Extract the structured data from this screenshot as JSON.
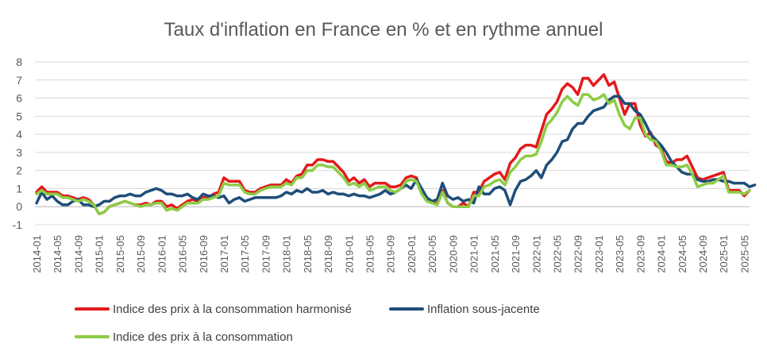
{
  "chart_data": {
    "type": "line",
    "title": "Taux d'inflation en France en % et en rythme annuel",
    "xlabel": "",
    "ylabel": "",
    "ylim": [
      -1,
      8
    ],
    "yticks": [
      "-1",
      "0",
      "1",
      "2",
      "3",
      "4",
      "5",
      "6",
      "7",
      "8"
    ],
    "grid": "horizontal",
    "legend_position": "bottom",
    "x_tick_labels": [
      "2014-01",
      "2014-05",
      "2014-09",
      "2015-01",
      "2015-05",
      "2015-09",
      "2016-01",
      "2016-05",
      "2016-09",
      "2017-01",
      "2017-05",
      "2017-09",
      "2018-01",
      "2018-05",
      "2018-09",
      "2019-01",
      "2019-05",
      "2019-09",
      "2020-01",
      "2020-05",
      "2020-09",
      "2021-01",
      "2021-05",
      "2021-09",
      "2022-01",
      "2022-05",
      "2022-09",
      "2023-01",
      "2023-05",
      "2023-09",
      "2024-01",
      "2024-05",
      "2024-09",
      "2025-01",
      "2025-05"
    ],
    "series": [
      {
        "name": "Indice des prix à la consommation harmonisé",
        "color": "#e31a1c",
        "values": [
          0.8,
          1.1,
          0.8,
          0.8,
          0.8,
          0.6,
          0.6,
          0.5,
          0.4,
          0.5,
          0.4,
          0.1,
          -0.4,
          -0.3,
          0.0,
          0.1,
          0.2,
          0.3,
          0.2,
          0.1,
          0.1,
          0.2,
          0.1,
          0.3,
          0.3,
          0.0,
          0.1,
          -0.1,
          0.1,
          0.3,
          0.4,
          0.3,
          0.5,
          0.5,
          0.7,
          0.8,
          1.6,
          1.4,
          1.4,
          1.4,
          0.9,
          0.8,
          0.8,
          1.0,
          1.1,
          1.2,
          1.2,
          1.2,
          1.5,
          1.3,
          1.7,
          1.8,
          2.3,
          2.3,
          2.6,
          2.6,
          2.5,
          2.5,
          2.2,
          1.9,
          1.4,
          1.6,
          1.3,
          1.5,
          1.1,
          1.3,
          1.3,
          1.3,
          1.1,
          1.1,
          1.2,
          1.6,
          1.7,
          1.6,
          0.8,
          0.4,
          0.2,
          0.2,
          0.9,
          0.2,
          0.0,
          0.0,
          0.2,
          0.0,
          0.8,
          0.8,
          1.4,
          1.6,
          1.8,
          1.9,
          1.5,
          2.4,
          2.7,
          3.2,
          3.4,
          3.4,
          3.3,
          4.2,
          5.1,
          5.4,
          5.8,
          6.5,
          6.8,
          6.6,
          6.2,
          7.1,
          7.1,
          6.7,
          7.0,
          7.3,
          6.7,
          6.9,
          6.0,
          5.1,
          5.7,
          5.7,
          4.5,
          3.9,
          4.1,
          3.4,
          3.2,
          2.5,
          2.4,
          2.6,
          2.6,
          2.8,
          2.2,
          1.6,
          1.5,
          1.6,
          1.7,
          1.8,
          1.9,
          0.9,
          0.9,
          0.9,
          0.6,
          0.9
        ]
      },
      {
        "name": "Inflation sous-jacente",
        "color": "#1f4e79",
        "values": [
          0.2,
          0.8,
          0.4,
          0.6,
          0.3,
          0.1,
          0.1,
          0.3,
          0.4,
          0.1,
          0.1,
          0.0,
          0.1,
          0.3,
          0.3,
          0.5,
          0.6,
          0.6,
          0.7,
          0.6,
          0.6,
          0.8,
          0.9,
          1.0,
          0.9,
          0.7,
          0.7,
          0.6,
          0.6,
          0.7,
          0.5,
          0.4,
          0.7,
          0.6,
          0.6,
          0.5,
          0.6,
          0.2,
          0.4,
          0.5,
          0.3,
          0.4,
          0.5,
          0.5,
          0.5,
          0.5,
          0.5,
          0.6,
          0.8,
          0.7,
          0.9,
          0.8,
          1.0,
          0.8,
          0.8,
          0.9,
          0.7,
          0.8,
          0.7,
          0.7,
          0.6,
          0.7,
          0.6,
          0.6,
          0.5,
          0.6,
          0.7,
          0.9,
          0.7,
          0.8,
          1.0,
          1.2,
          1.0,
          1.5,
          1.0,
          0.5,
          0.3,
          0.4,
          1.3,
          0.6,
          0.4,
          0.5,
          0.3,
          0.4,
          0.2,
          1.1,
          0.7,
          0.7,
          1.0,
          1.1,
          0.9,
          0.1,
          0.9,
          1.4,
          1.5,
          1.7,
          2.0,
          1.6,
          2.3,
          2.6,
          3.0,
          3.6,
          3.7,
          4.3,
          4.6,
          4.6,
          5.0,
          5.3,
          5.4,
          5.5,
          5.9,
          6.1,
          6.1,
          5.7,
          5.7,
          5.3,
          5.1,
          4.6,
          4.0,
          3.7,
          3.4,
          3.0,
          2.5,
          2.2,
          1.9,
          1.8,
          1.8,
          1.5,
          1.4,
          1.4,
          1.5,
          1.5,
          1.4,
          1.4,
          1.3,
          1.3,
          1.3,
          1.1,
          1.2
        ]
      },
      {
        "name": "Indice des prix à la consommation",
        "color": "#8ccc45",
        "values": [
          0.7,
          0.9,
          0.7,
          0.7,
          0.7,
          0.5,
          0.5,
          0.4,
          0.3,
          0.4,
          0.3,
          0.1,
          -0.4,
          -0.3,
          0.0,
          0.1,
          0.2,
          0.3,
          0.2,
          0.1,
          0.0,
          0.1,
          0.1,
          0.2,
          0.2,
          -0.2,
          -0.1,
          -0.2,
          0.0,
          0.2,
          0.2,
          0.2,
          0.4,
          0.4,
          0.5,
          0.6,
          1.3,
          1.2,
          1.2,
          1.2,
          0.8,
          0.7,
          0.7,
          0.9,
          1.0,
          1.1,
          1.1,
          1.1,
          1.3,
          1.2,
          1.6,
          1.6,
          2.0,
          2.0,
          2.3,
          2.3,
          2.2,
          2.2,
          1.9,
          1.6,
          1.2,
          1.3,
          1.1,
          1.3,
          0.9,
          1.0,
          1.1,
          1.1,
          0.9,
          0.8,
          1.0,
          1.4,
          1.5,
          1.4,
          0.7,
          0.3,
          0.2,
          0.1,
          0.8,
          0.2,
          0.0,
          0.0,
          0.0,
          0.0,
          0.6,
          0.6,
          1.1,
          1.2,
          1.4,
          1.5,
          1.2,
          1.9,
          2.2,
          2.6,
          2.8,
          2.8,
          2.9,
          3.6,
          4.5,
          4.8,
          5.2,
          5.8,
          6.1,
          5.8,
          5.6,
          6.2,
          6.2,
          5.9,
          6.0,
          6.2,
          5.7,
          5.9,
          5.1,
          4.5,
          4.3,
          4.9,
          4.9,
          4.0,
          3.7,
          3.6,
          3.1,
          2.3,
          2.3,
          2.2,
          2.2,
          2.3,
          1.8,
          1.1,
          1.2,
          1.3,
          1.3,
          1.5,
          1.7,
          0.8,
          0.8,
          0.8,
          0.7,
          0.9
        ]
      }
    ]
  }
}
